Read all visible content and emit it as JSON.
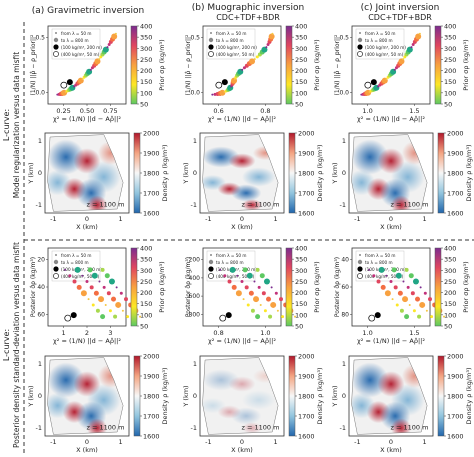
{
  "columns": [
    {
      "title": "(a) Gravimetric inversion",
      "subtitle": ""
    },
    {
      "title": "(b) Muographic inversion",
      "subtitle": "CDC+TDF+BDR"
    },
    {
      "title": "(c) Joint inversion",
      "subtitle": "CDC+TDF+BDR"
    }
  ],
  "row_groups": [
    {
      "heading": "L-curve:",
      "subtitle": "Model regularization versus data misfit"
    },
    {
      "heading": "L-curve:",
      "subtitle": "Posterior density standard-deviation versus data misfit"
    }
  ],
  "lcurve_top": {
    "ylabel": "(1/N) ||ρ̂ − ρ_prior||²",
    "xlabel": "χ² = (1/N) ||d − Aρ̂||²",
    "cbar_label": "Prior σρ (kg/m³)",
    "cbar_ticks": [
      "400",
      "350",
      "300",
      "250",
      "200",
      "150",
      "100",
      "50"
    ],
    "yticks": [
      "0.5",
      "0.0"
    ],
    "xticks": [
      [
        "0.25",
        "0.50",
        "0.75"
      ],
      [
        "0.6",
        "0.8"
      ],
      [
        "1.0",
        "1.5"
      ]
    ],
    "legend": [
      "from λ = 50 m",
      "to λ = 800 m",
      "(100 kg/m³, 200 m)",
      "(400 kg/m³, 50 m)"
    ]
  },
  "lcurve_bottom": {
    "ylabel": "Posterior σ̂ρ (kg/m³)",
    "xlabel": "χ² = (1/N) ||d − Aρ̂||²",
    "cbar_label": "Prior σρ (kg/m³)",
    "cbar_ticks": [
      "400",
      "350",
      "300",
      "250",
      "200",
      "150",
      "100",
      "50"
    ],
    "yticks": [
      [
        "20",
        "40",
        "60"
      ],
      [
        "200",
        "400",
        "600",
        "800"
      ],
      [
        "40",
        "60",
        "80"
      ]
    ],
    "xticks": [
      [
        "1",
        "2",
        "3"
      ],
      [
        "0.8",
        "1.0"
      ],
      [
        "1.0",
        "1.5"
      ]
    ],
    "legend": [
      "from λ = 50 m",
      "to λ = 800 m",
      "(100 kg/m³, 200 m)",
      "(400 kg/m³, 50 m)"
    ]
  },
  "density_map": {
    "ylabel": "Y (km)",
    "xlabel": "X (km)",
    "xticks": [
      "-1",
      "0",
      "1"
    ],
    "yticks": [
      "1",
      "0",
      "-1"
    ],
    "annotation": "z = 1100 m",
    "cbar_label": "Density ρ (kg/m³)",
    "cbar_ticks": [
      "2000",
      "1900",
      "1800",
      "1700",
      "1600"
    ]
  },
  "colors": {
    "divider": "#333333",
    "text": "#222222"
  }
}
